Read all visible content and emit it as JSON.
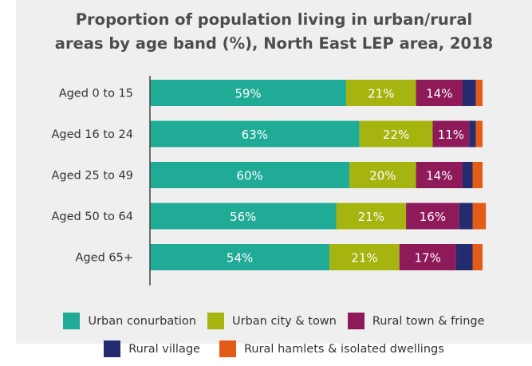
{
  "chart_data": {
    "type": "bar",
    "orientation": "horizontal",
    "stacked": true,
    "title_lines": [
      "Proportion of population living in urban/rural",
      "areas by age band (%), North East LEP area, 2018"
    ],
    "categories": [
      "Aged 0 to 15",
      "Aged 16 to 24",
      "Aged 25 to 49",
      "Aged 50 to 64",
      "Aged 65+"
    ],
    "series": [
      {
        "name": "Urban conurbation",
        "color": "#1fab96",
        "values": [
          59,
          63,
          60,
          56,
          54
        ],
        "labels": [
          "59%",
          "63%",
          "60%",
          "56%",
          "54%"
        ]
      },
      {
        "name": "Urban city & town",
        "color": "#a5b40f",
        "values": [
          21,
          22,
          20,
          21,
          21
        ],
        "labels": [
          "21%",
          "22%",
          "20%",
          "21%",
          "21%"
        ]
      },
      {
        "name": "Rural town & fringe",
        "color": "#8e1a5a",
        "values": [
          14,
          11,
          14,
          16,
          17
        ],
        "labels": [
          "14%",
          "11%",
          "14%",
          "16%",
          "17%"
        ]
      },
      {
        "name": "Rural village",
        "color": "#242b6e",
        "values": [
          4,
          2,
          3,
          4,
          5
        ],
        "labels": [
          "",
          "",
          "",
          "",
          ""
        ]
      },
      {
        "name": "Rural hamlets & isolated dwellings",
        "color": "#e35b16",
        "values": [
          2,
          2,
          3,
          4,
          3
        ],
        "labels": [
          "",
          "",
          "",
          "",
          ""
        ]
      }
    ],
    "xlim": [
      0,
      100
    ],
    "grid": false,
    "legend_position": "bottom"
  }
}
